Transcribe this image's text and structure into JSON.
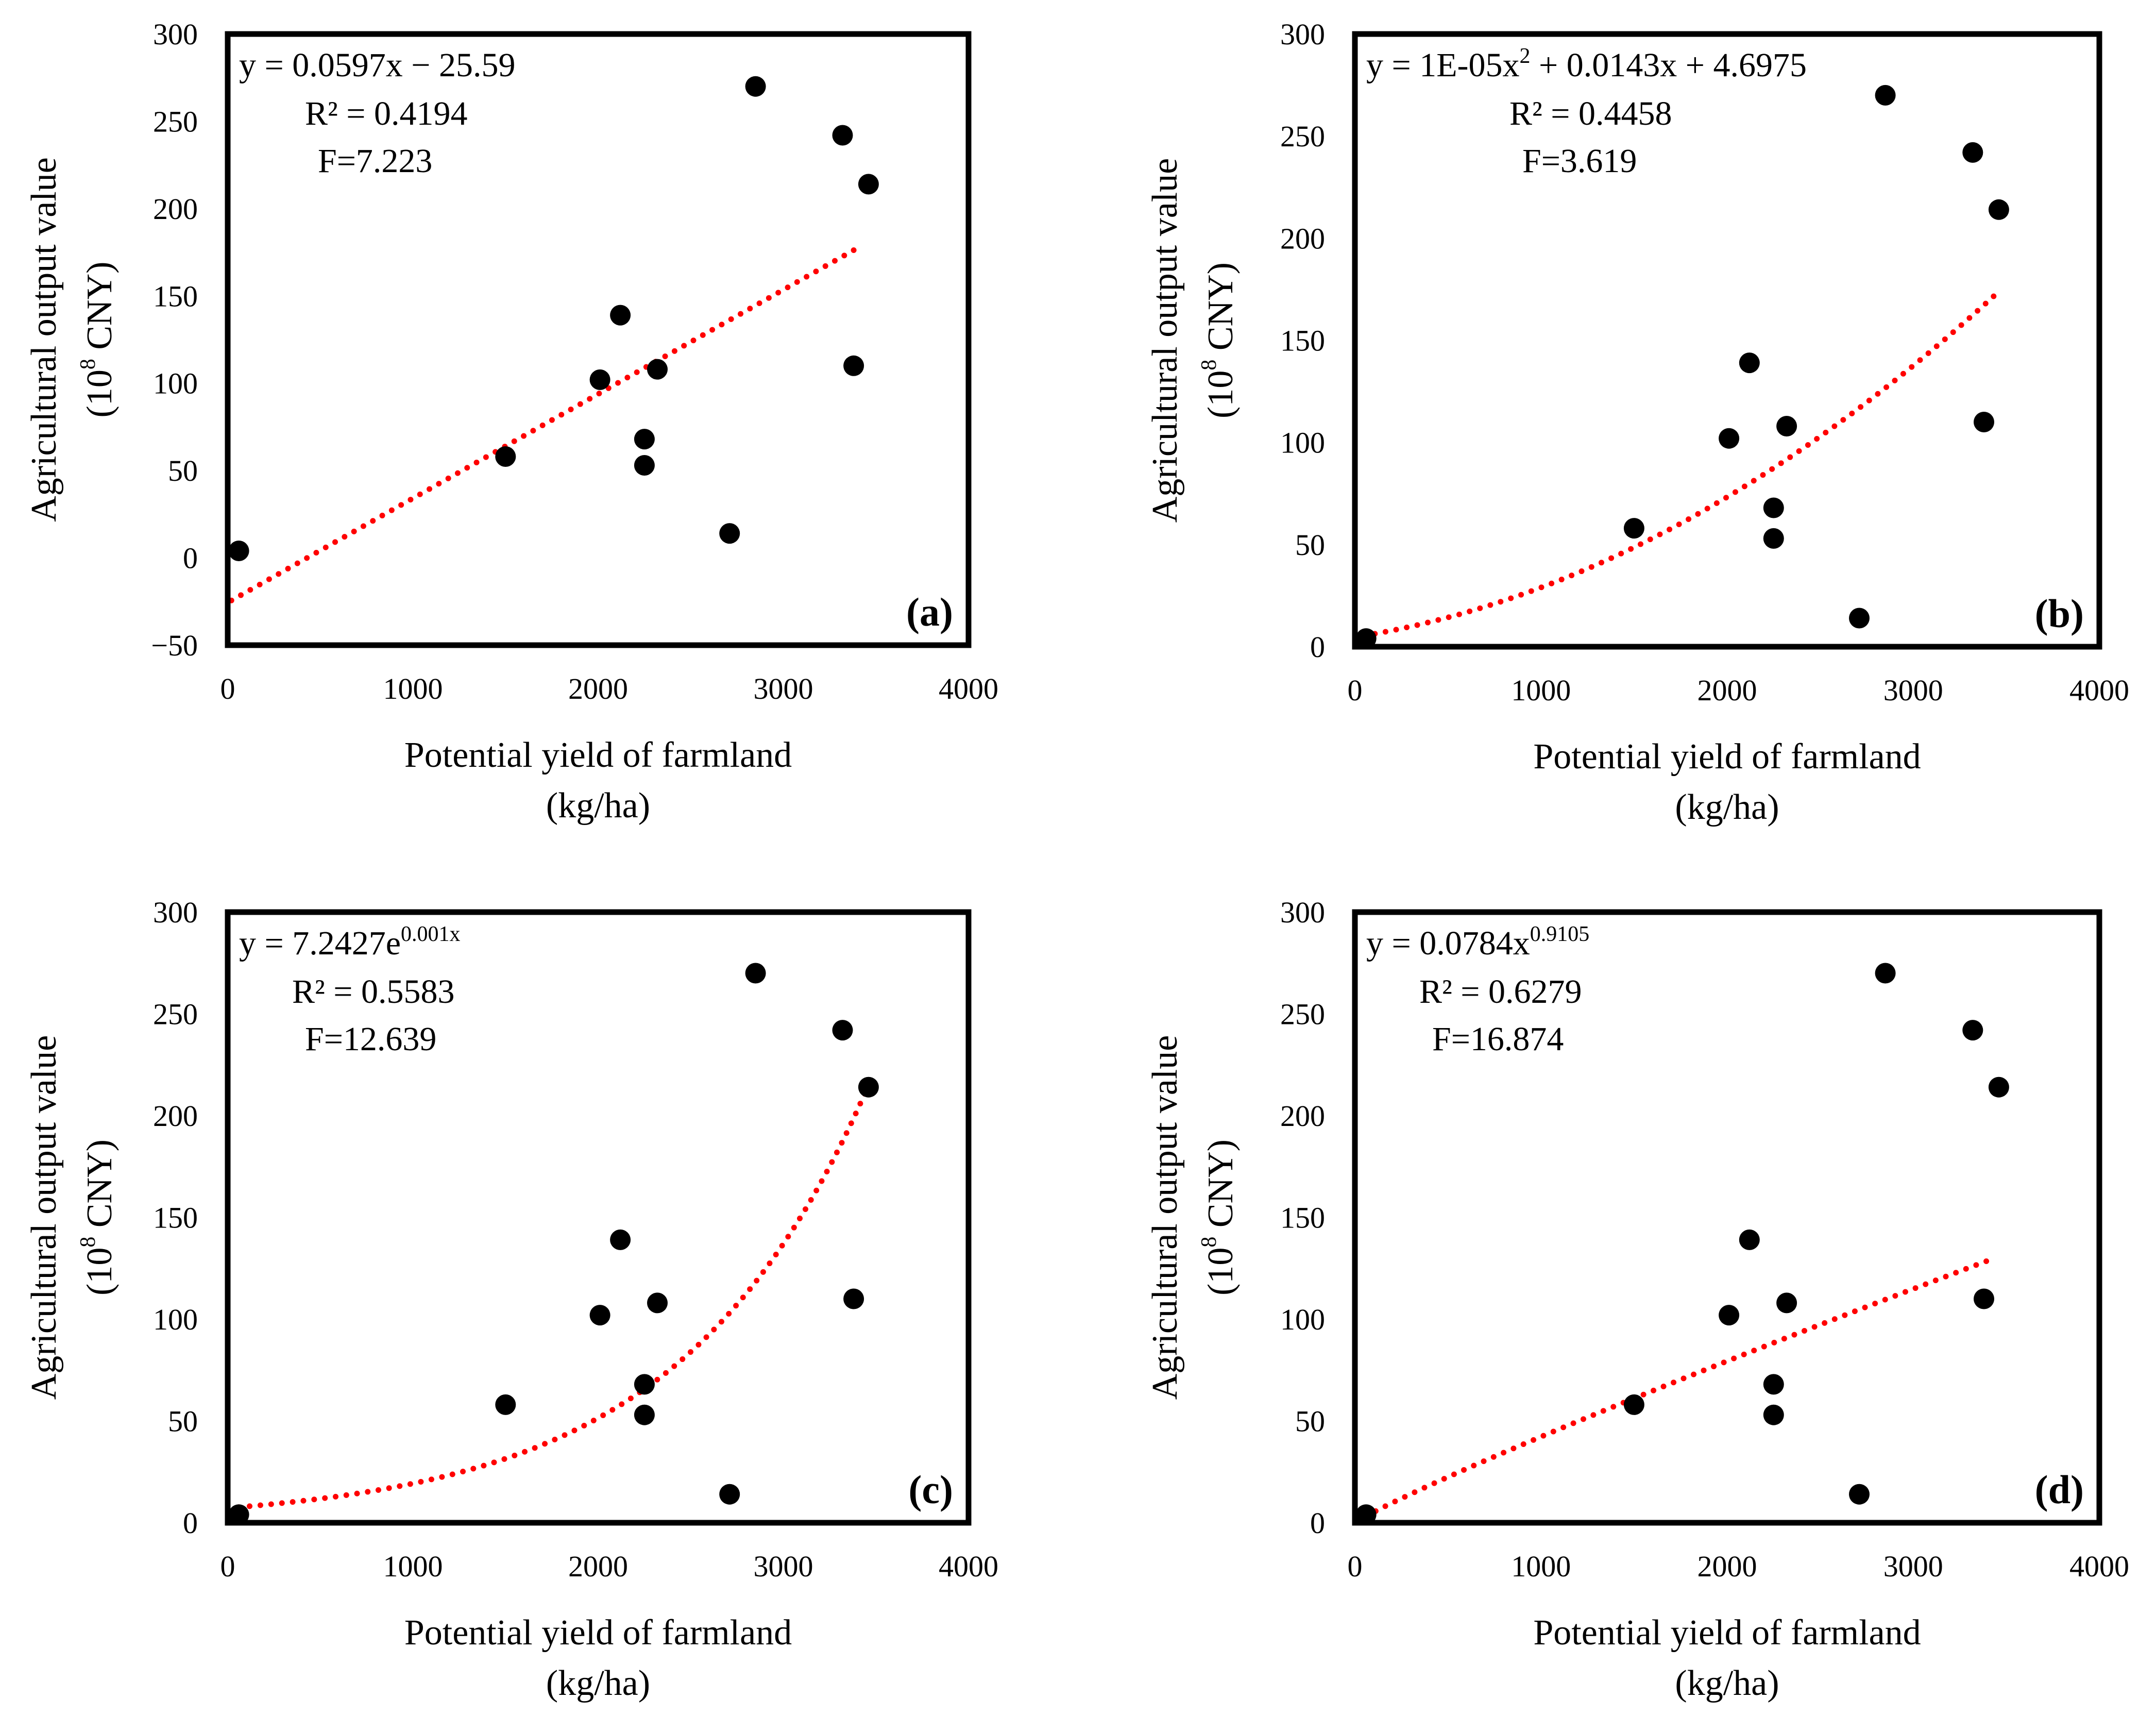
{
  "chart_data": [
    {
      "type": "scatter",
      "panel": "(a)",
      "xlabel": "Potential yield of farmland",
      "xlabel_unit": "(kg/ha)",
      "ylabel": "Agricultural output value",
      "ylabel_unit": [
        "(10",
        "8",
        " CNY)"
      ],
      "xlim": [
        0,
        4000
      ],
      "ylim": [
        -50,
        300
      ],
      "xticks": [
        "0",
        "1000",
        "2000",
        "3000",
        "4000"
      ],
      "yticks": [
        "300",
        "250",
        "200",
        "150",
        "100",
        "50",
        "0",
        "−50"
      ],
      "ytick_values": [
        300,
        250,
        200,
        150,
        100,
        50,
        0,
        -50
      ],
      "points": [
        [
          60,
          4
        ],
        [
          1500,
          58
        ],
        [
          2010,
          102
        ],
        [
          2120,
          139
        ],
        [
          2250,
          68
        ],
        [
          2250,
          53
        ],
        [
          2320,
          108
        ],
        [
          2710,
          14
        ],
        [
          2850,
          270
        ],
        [
          3320,
          242
        ],
        [
          3380,
          110
        ],
        [
          3460,
          214
        ]
      ],
      "trend": {
        "kind": "linear",
        "a": 0.0597,
        "b": -25.59,
        "x_range": [
          20,
          3400
        ]
      },
      "equation": [
        "y = 0.0597x − 25.59"
      ],
      "r2": "R² = 0.4194",
      "f": "F=7.223"
    },
    {
      "type": "scatter",
      "panel": "(b)",
      "xlabel": "Potential yield of farmland",
      "xlabel_unit": "(kg/ha)",
      "ylabel": "Agricultural output value",
      "ylabel_unit": [
        "(10",
        "8",
        " CNY)"
      ],
      "xlim": [
        0,
        4000
      ],
      "ylim": [
        0,
        300
      ],
      "xticks": [
        "0",
        "1000",
        "2000",
        "3000",
        "4000"
      ],
      "yticks": [
        "300",
        "250",
        "200",
        "150",
        "100",
        "50",
        "0"
      ],
      "ytick_values": [
        300,
        250,
        200,
        150,
        100,
        50,
        0
      ],
      "points": [
        [
          60,
          4
        ],
        [
          1500,
          58
        ],
        [
          2010,
          102
        ],
        [
          2120,
          139
        ],
        [
          2250,
          68
        ],
        [
          2250,
          53
        ],
        [
          2320,
          108
        ],
        [
          2710,
          14
        ],
        [
          2850,
          270
        ],
        [
          3320,
          242
        ],
        [
          3380,
          110
        ],
        [
          3460,
          214
        ]
      ],
      "trend": {
        "kind": "poly2",
        "a": 1e-05,
        "b": 0.0143,
        "c": 4.6975,
        "x_range": [
          50,
          3440
        ]
      },
      "equation": [
        "y = 1E-05x",
        "2",
        " + 0.0143x + 4.6975"
      ],
      "r2": "R² = 0.4458",
      "f": "F=3.619"
    },
    {
      "type": "scatter",
      "panel": "(c)",
      "xlabel": "Potential yield of farmland",
      "xlabel_unit": "(kg/ha)",
      "ylabel": "Agricultural output value",
      "ylabel_unit": [
        "(10",
        "8",
        " CNY)"
      ],
      "xlim": [
        0,
        4000
      ],
      "ylim": [
        0,
        300
      ],
      "xticks": [
        "0",
        "1000",
        "2000",
        "3000",
        "4000"
      ],
      "yticks": [
        "300",
        "250",
        "200",
        "150",
        "100",
        "50",
        "0"
      ],
      "ytick_values": [
        300,
        250,
        200,
        150,
        100,
        50,
        0
      ],
      "points": [
        [
          60,
          4
        ],
        [
          1500,
          58
        ],
        [
          2010,
          102
        ],
        [
          2120,
          139
        ],
        [
          2250,
          68
        ],
        [
          2250,
          53
        ],
        [
          2320,
          108
        ],
        [
          2710,
          14
        ],
        [
          2850,
          270
        ],
        [
          3320,
          242
        ],
        [
          3380,
          110
        ],
        [
          3460,
          214
        ]
      ],
      "trend": {
        "kind": "exp",
        "a": 7.2427,
        "b": 0.00098,
        "x_range": [
          60,
          3450
        ]
      },
      "equation": [
        "y = 7.2427e",
        "0.001x"
      ],
      "r2": "R² = 0.5583",
      "f": "F=12.639"
    },
    {
      "type": "scatter",
      "panel": "(d)",
      "xlabel": "Potential yield of farmland",
      "xlabel_unit": "(kg/ha)",
      "ylabel": "Agricultural output value",
      "ylabel_unit": [
        "(10",
        "8",
        " CNY)"
      ],
      "xlim": [
        0,
        4000
      ],
      "ylim": [
        0,
        300
      ],
      "xticks": [
        "0",
        "1000",
        "2000",
        "3000",
        "4000"
      ],
      "yticks": [
        "300",
        "250",
        "200",
        "150",
        "100",
        "50",
        "0"
      ],
      "ytick_values": [
        300,
        250,
        200,
        150,
        100,
        50,
        0
      ],
      "points": [
        [
          60,
          4
        ],
        [
          1500,
          58
        ],
        [
          2010,
          102
        ],
        [
          2120,
          139
        ],
        [
          2250,
          68
        ],
        [
          2250,
          53
        ],
        [
          2320,
          108
        ],
        [
          2710,
          14
        ],
        [
          2850,
          270
        ],
        [
          3320,
          242
        ],
        [
          3380,
          110
        ],
        [
          3460,
          214
        ]
      ],
      "trend": {
        "kind": "power",
        "a": 0.0784,
        "b": 0.9105,
        "x_range": [
          60,
          3400
        ]
      },
      "equation": [
        "y = 0.0784x",
        "0.9105"
      ],
      "r2": "R² = 0.6279",
      "f": "F=16.874"
    }
  ]
}
